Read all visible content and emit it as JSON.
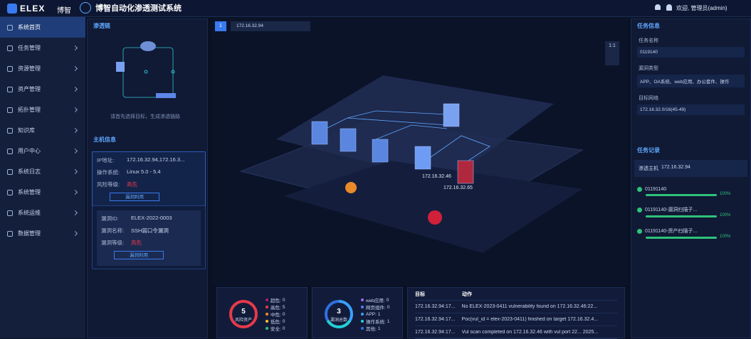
{
  "header": {
    "logo": "ELEX",
    "logo_cn": "博智",
    "title": "博智自动化渗透测试系统",
    "user": "欢迎, 管理员(admin)"
  },
  "menu": [
    "系统首页",
    "任务管理",
    "资源管理",
    "资产管理",
    "拓扑管理",
    "知识库",
    "用户中心",
    "系统日志",
    "系统管理",
    "系统运维",
    "数据管理"
  ],
  "left_panel": {
    "chain_title": "渗透链",
    "chain_hint": "请首先选择目标，生成渗透链路",
    "host_title": "主机信息",
    "host": {
      "fields": [
        {
          "label": "IP地址:",
          "value": "172.16.32.94,172.16.3..."
        },
        {
          "label": "操作系统:",
          "value": "Linux 5.0 - 5.4"
        },
        {
          "label": "风险等级:",
          "value": "高危"
        }
      ],
      "button": "漏洞利用"
    },
    "vuln": {
      "fields": [
        {
          "label": "漏洞ID:",
          "value": "ELEX-2022-0003"
        },
        {
          "label": "漏洞名称:",
          "value": "SSH弱口令漏洞"
        },
        {
          "label": "漏洞等级:",
          "value": "高危"
        }
      ],
      "button": "漏洞利用"
    }
  },
  "canvas": {
    "tab": "1",
    "target": "172.16.32.94",
    "zoom": "1:1",
    "nodes": [
      "172.16.32.46",
      "172.16.32.65"
    ]
  },
  "risk_stats": {
    "total": 5,
    "label": "风险资产",
    "items": [
      {
        "name": "超危:",
        "value": 0,
        "color": "#b0206a"
      },
      {
        "name": "高危:",
        "value": 5,
        "color": "#e8394a"
      },
      {
        "name": "中危:",
        "value": 0,
        "color": "#f08a24"
      },
      {
        "name": "低危:",
        "value": 0,
        "color": "#f4c430"
      },
      {
        "name": "安全:",
        "value": 0,
        "color": "#2fc27a"
      }
    ]
  },
  "vuln_stats": {
    "total": 3,
    "label": "漏洞总数",
    "items": [
      {
        "name": "web应用:",
        "value": 0,
        "color": "#9b6cf0"
      },
      {
        "name": "网页组件:",
        "value": 0,
        "color": "#5b7cf5"
      },
      {
        "name": "APP:",
        "value": 1,
        "color": "#3aa0ff"
      },
      {
        "name": "操作系统:",
        "value": 1,
        "color": "#22d0d8"
      },
      {
        "name": "其他:",
        "value": 1,
        "color": "#2f6fe0"
      }
    ]
  },
  "log": {
    "headers": [
      "目标",
      "动作"
    ],
    "rows": [
      [
        "172.16.32.94:17...",
        "No ELEX-2023-0411 vulnerability found on 172.16.32.46:22..."
      ],
      [
        "172.16.32.94:17...",
        "Poc(vul_id = elex-2023-0411) finished on target 172.16.32.4..."
      ],
      [
        "172.16.32.94:17...",
        "Vul scan completed on 172.16.32.46 with vul port 22... 2025..."
      ]
    ]
  },
  "task_info": {
    "title": "任务信息",
    "fields": [
      {
        "label": "任务名称",
        "value": "0119140"
      },
      {
        "label": "漏洞类型",
        "value": "APP、OA系统、web应用、办公套件、操作"
      },
      {
        "label": "目标网络",
        "value": "172.16.32.0/16(45-49)"
      }
    ]
  },
  "task_records": {
    "title": "任务记录",
    "host_label": "渗透主机",
    "host": "172.16.32.94",
    "items": [
      {
        "name": "01191140",
        "progress": 100,
        "progress_label": "100%"
      },
      {
        "name": "01191140-漏洞扫描子...",
        "progress": 100,
        "progress_label": "100%"
      },
      {
        "name": "01191140-资产扫描子...",
        "progress": 100,
        "progress_label": "100%"
      }
    ]
  }
}
